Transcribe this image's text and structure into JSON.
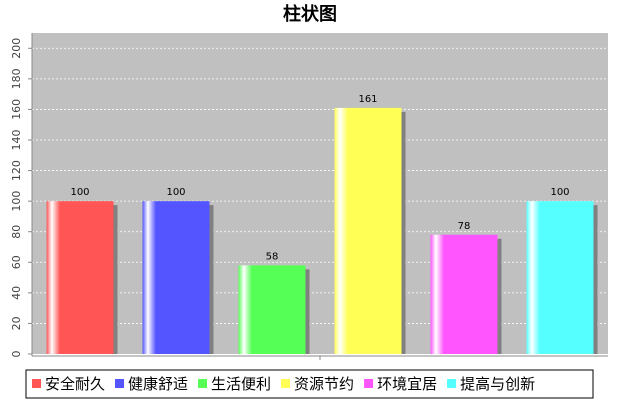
{
  "chart_data": {
    "type": "bar",
    "title": "柱状图",
    "categories": [
      "安全耐久",
      "健康舒适",
      "生活便利",
      "资源节约",
      "环境宜居",
      "提高与创新"
    ],
    "values": [
      100,
      100,
      58,
      161,
      78,
      100
    ],
    "colors": [
      "#ff5555",
      "#5555ff",
      "#55ff55",
      "#ffff55",
      "#ff55ff",
      "#55ffff"
    ],
    "ylim": [
      0,
      210
    ],
    "yticks": [
      0,
      20,
      40,
      60,
      80,
      100,
      120,
      140,
      160,
      180,
      200
    ],
    "grid": true,
    "legend": "bottom",
    "plot_background": "#c0c0c0"
  }
}
